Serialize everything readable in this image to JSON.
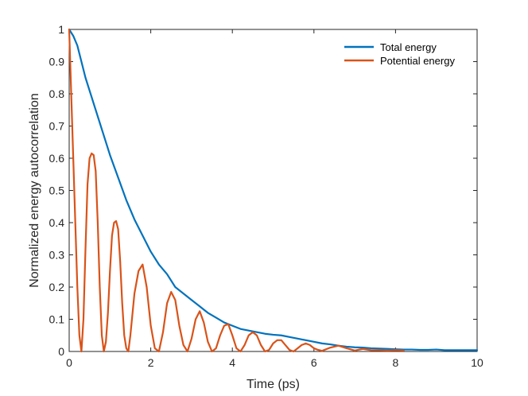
{
  "chart_data": {
    "type": "line",
    "xlabel": "Time (ps)",
    "ylabel": "Normalized energy autocorrelation",
    "xlim": [
      0,
      10
    ],
    "ylim": [
      0,
      1
    ],
    "xticks": [
      0,
      2,
      4,
      6,
      8,
      10
    ],
    "yticks": [
      0,
      0.1,
      0.2,
      0.3,
      0.4,
      0.5,
      0.6,
      0.7,
      0.8,
      0.9,
      1
    ],
    "grid": false,
    "legend_position": "top-right",
    "series": [
      {
        "name": "Total energy",
        "color": "#0072BD",
        "x": [
          0,
          0.1,
          0.2,
          0.3,
          0.4,
          0.5,
          0.6,
          0.8,
          1.0,
          1.2,
          1.4,
          1.6,
          1.8,
          2.0,
          2.2,
          2.4,
          2.6,
          2.8,
          3.0,
          3.2,
          3.4,
          3.6,
          3.8,
          4.0,
          4.2,
          4.4,
          4.6,
          4.8,
          5.0,
          5.2,
          5.4,
          5.6,
          5.8,
          6.0,
          6.2,
          6.4,
          6.6,
          6.8,
          7.0,
          7.2,
          7.4,
          7.6,
          7.8,
          8.0,
          8.2,
          8.4,
          8.6,
          8.8,
          9.0,
          9.2,
          9.4,
          9.6,
          9.8,
          10.0
        ],
        "y": [
          1.0,
          0.98,
          0.95,
          0.9,
          0.85,
          0.81,
          0.77,
          0.69,
          0.61,
          0.54,
          0.47,
          0.41,
          0.36,
          0.31,
          0.27,
          0.24,
          0.2,
          0.18,
          0.16,
          0.14,
          0.12,
          0.105,
          0.09,
          0.08,
          0.07,
          0.065,
          0.06,
          0.055,
          0.052,
          0.05,
          0.045,
          0.04,
          0.035,
          0.03,
          0.025,
          0.022,
          0.018,
          0.015,
          0.013,
          0.012,
          0.01,
          0.009,
          0.008,
          0.007,
          0.006,
          0.006,
          0.005,
          0.005,
          0.006,
          0.004,
          0.004,
          0.004,
          0.004,
          0.004
        ]
      },
      {
        "name": "Potential energy",
        "color": "#D95319",
        "x": [
          0,
          0.05,
          0.1,
          0.15,
          0.2,
          0.25,
          0.3,
          0.35,
          0.4,
          0.45,
          0.5,
          0.55,
          0.6,
          0.65,
          0.7,
          0.75,
          0.8,
          0.85,
          0.9,
          0.95,
          1.0,
          1.05,
          1.1,
          1.15,
          1.2,
          1.25,
          1.3,
          1.35,
          1.4,
          1.45,
          1.5,
          1.6,
          1.7,
          1.8,
          1.9,
          2.0,
          2.1,
          2.2,
          2.3,
          2.4,
          2.5,
          2.6,
          2.7,
          2.8,
          2.9,
          3.0,
          3.1,
          3.2,
          3.3,
          3.4,
          3.5,
          3.6,
          3.7,
          3.8,
          3.9,
          4.0,
          4.1,
          4.2,
          4.3,
          4.4,
          4.5,
          4.6,
          4.7,
          4.8,
          4.9,
          5.0,
          5.1,
          5.2,
          5.3,
          5.4,
          5.5,
          5.6,
          5.7,
          5.8,
          5.9,
          6.0,
          6.1,
          6.2,
          6.4,
          6.6,
          6.8,
          7.0,
          7.2,
          7.4,
          7.6,
          7.8,
          8.0,
          8.2
        ],
        "y": [
          1.0,
          0.8,
          0.6,
          0.4,
          0.2,
          0.05,
          0.0,
          0.1,
          0.32,
          0.52,
          0.6,
          0.615,
          0.61,
          0.56,
          0.4,
          0.2,
          0.05,
          0.0,
          0.03,
          0.12,
          0.25,
          0.36,
          0.4,
          0.405,
          0.38,
          0.28,
          0.15,
          0.05,
          0.01,
          0.0,
          0.05,
          0.18,
          0.25,
          0.27,
          0.2,
          0.08,
          0.01,
          0.0,
          0.06,
          0.15,
          0.185,
          0.16,
          0.08,
          0.02,
          0.0,
          0.04,
          0.1,
          0.125,
          0.09,
          0.03,
          0.0,
          0.01,
          0.05,
          0.08,
          0.085,
          0.05,
          0.01,
          0.0,
          0.02,
          0.05,
          0.06,
          0.05,
          0.02,
          0.0,
          0.005,
          0.025,
          0.035,
          0.035,
          0.02,
          0.005,
          0.0,
          0.01,
          0.02,
          0.025,
          0.02,
          0.01,
          0.005,
          0.002,
          0.012,
          0.018,
          0.01,
          0.003,
          0.008,
          0.004,
          0.004,
          0.003,
          0.004,
          0.003
        ]
      }
    ]
  }
}
